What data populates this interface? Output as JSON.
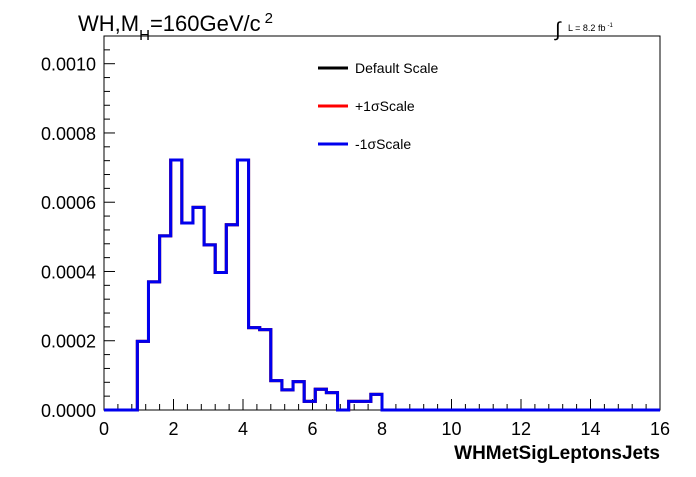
{
  "chart_data": {
    "type": "line",
    "title_parts": {
      "main": "WH,M",
      "sub": "H",
      "rest": "=160GeV/c",
      "sup": "2"
    },
    "lumi_label": {
      "integral": "∫",
      "text": "L = 8.2 fb",
      "sup": "-1"
    },
    "xlabel": "WHMetSigLeptonsJets",
    "ylabel": "",
    "xlim": [
      0,
      16
    ],
    "ylim": [
      0,
      0.00108
    ],
    "x_ticks": [
      {
        "value": 0,
        "label": "0"
      },
      {
        "value": 2,
        "label": "2"
      },
      {
        "value": 4,
        "label": "4"
      },
      {
        "value": 6,
        "label": "6"
      },
      {
        "value": 8,
        "label": "8"
      },
      {
        "value": 10,
        "label": "10"
      },
      {
        "value": 12,
        "label": "12"
      },
      {
        "value": 14,
        "label": "14"
      },
      {
        "value": 16,
        "label": "16"
      }
    ],
    "y_ticks": [
      {
        "value": 0.0,
        "label": "0.0000"
      },
      {
        "value": 0.0002,
        "label": "0.0002"
      },
      {
        "value": 0.0004,
        "label": "0.0004"
      },
      {
        "value": 0.0006,
        "label": "0.0006"
      },
      {
        "value": 0.0008,
        "label": "0.0008"
      },
      {
        "value": 0.001,
        "label": "0.0010"
      }
    ],
    "grid": false,
    "legend_position": "top-center",
    "bin_width": 0.32,
    "x_start": 0.0,
    "series": [
      {
        "name": "Default Scale",
        "color": "#000000",
        "values": [
          0,
          0,
          0,
          0.000198,
          0.00037,
          0.000503,
          0.000722,
          0.00054,
          0.000585,
          0.000477,
          0.000397,
          0.000535,
          0.000722,
          0.000238,
          0.000232,
          8.5e-05,
          5.8e-05,
          8.2e-05,
          2.5e-05,
          6e-05,
          5e-05,
          0.0,
          2.5e-05,
          2.5e-05,
          4.5e-05,
          0,
          0,
          0,
          0,
          0,
          0,
          0,
          0,
          0,
          0,
          0,
          0,
          0,
          0,
          0,
          0,
          0,
          0,
          0,
          0,
          0,
          0,
          0,
          0,
          0
        ]
      },
      {
        "name": "+1σScale",
        "color": "#ff0000",
        "values": [
          0,
          0,
          0,
          0.000198,
          0.00037,
          0.000503,
          0.000722,
          0.00054,
          0.000585,
          0.000477,
          0.000397,
          0.000535,
          0.000722,
          0.000238,
          0.000232,
          8.5e-05,
          5.8e-05,
          8.2e-05,
          2.5e-05,
          6e-05,
          5e-05,
          0.0,
          2.5e-05,
          2.5e-05,
          4.5e-05,
          0,
          0,
          0,
          0,
          0,
          0,
          0,
          0,
          0,
          0,
          0,
          0,
          0,
          0,
          0,
          0,
          0,
          0,
          0,
          0,
          0,
          0,
          0,
          0,
          0
        ]
      },
      {
        "name": "-1σScale",
        "color": "#0000ee",
        "values": [
          0,
          0,
          0,
          0.000198,
          0.00037,
          0.000503,
          0.000722,
          0.00054,
          0.000585,
          0.000477,
          0.000397,
          0.000535,
          0.000722,
          0.000238,
          0.000232,
          8.5e-05,
          5.8e-05,
          8.2e-05,
          2.5e-05,
          6e-05,
          5e-05,
          0.0,
          2.5e-05,
          2.5e-05,
          4.5e-05,
          0,
          0,
          0,
          0,
          0,
          0,
          0,
          0,
          0,
          0,
          0,
          0,
          0,
          0,
          0,
          0,
          0,
          0,
          0,
          0,
          0,
          0,
          0,
          0,
          0
        ]
      }
    ]
  }
}
